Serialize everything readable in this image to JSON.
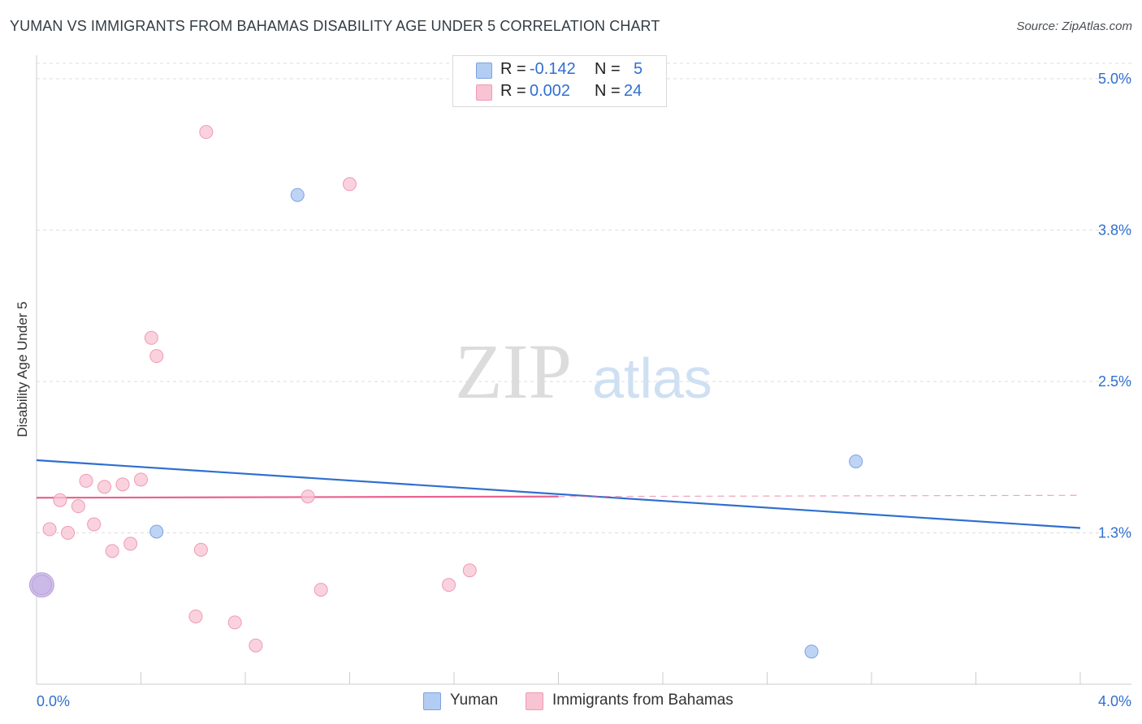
{
  "title": "YUMAN VS IMMIGRANTS FROM BAHAMAS DISABILITY AGE UNDER 5 CORRELATION CHART",
  "source": "Source: ZipAtlas.com",
  "watermark": {
    "zip": "ZIP",
    "atlas": "atlas"
  },
  "legend": {
    "rows": [
      {
        "r_label": "R =",
        "r_value": "-0.142",
        "n_label": "N =",
        "n_value": "5"
      },
      {
        "r_label": "R =",
        "r_value": "0.002",
        "n_label": "N =",
        "n_value": "24"
      }
    ]
  },
  "bottom_legend": [
    {
      "label": "Yuman"
    },
    {
      "label": "Immigrants from Bahamas"
    }
  ],
  "chart_data": {
    "type": "scatter",
    "title": "YUMAN VS IMMIGRANTS FROM BAHAMAS DISABILITY AGE UNDER 5 CORRELATION CHART",
    "xlabel": "",
    "ylabel": "Disability Age Under 5",
    "xlim": [
      0.0,
      4.0
    ],
    "ylim": [
      0.0,
      5.1
    ],
    "x_tick_labels": [
      "0.0%",
      "4.0%"
    ],
    "y_ticks": [
      1.25,
      2.5,
      3.75,
      5.0
    ],
    "y_tick_labels": [
      "1.3%",
      "2.5%",
      "3.8%",
      "5.0%"
    ],
    "grid": true,
    "legend_position": "top-center",
    "colors": {
      "yuman_fill": "#b3cdf2",
      "yuman_stroke": "#7ba3e3",
      "yuman_line": "#2f6fd0",
      "bahamas_fill": "#f8c3d3",
      "bahamas_stroke": "#ef9ab5",
      "bahamas_line": "#e8638f",
      "grid": "#dedede",
      "axis_text": "#2f6fd0",
      "purple_fill": "#c9b6e6",
      "purple_stroke": "#b9a0de"
    },
    "series": [
      {
        "name": "Yuman",
        "r": -0.142,
        "n": 5,
        "points": [
          [
            1.0,
            4.04
          ],
          [
            0.46,
            1.26
          ],
          [
            3.14,
            1.84
          ],
          [
            2.97,
            0.27
          ],
          [
            0.02,
            0.82
          ]
        ],
        "trend": {
          "x": [
            0.0,
            4.0
          ],
          "y": [
            1.85,
            1.29
          ],
          "dashed_from": null
        }
      },
      {
        "name": "Immigrants from Bahamas",
        "r": 0.002,
        "n": 24,
        "points": [
          [
            0.65,
            4.56
          ],
          [
            1.2,
            4.13
          ],
          [
            0.44,
            2.86
          ],
          [
            0.46,
            2.71
          ],
          [
            0.19,
            1.68
          ],
          [
            0.26,
            1.63
          ],
          [
            0.33,
            1.65
          ],
          [
            0.4,
            1.69
          ],
          [
            0.09,
            1.52
          ],
          [
            0.16,
            1.47
          ],
          [
            1.04,
            1.55
          ],
          [
            0.05,
            1.28
          ],
          [
            0.12,
            1.25
          ],
          [
            0.22,
            1.32
          ],
          [
            0.29,
            1.1
          ],
          [
            0.36,
            1.16
          ],
          [
            0.63,
            1.11
          ],
          [
            1.09,
            0.78
          ],
          [
            1.58,
            0.82
          ],
          [
            1.66,
            0.94
          ],
          [
            0.61,
            0.56
          ],
          [
            0.76,
            0.51
          ],
          [
            0.84,
            0.32
          ],
          [
            0.02,
            0.82
          ]
        ],
        "trend": {
          "x": [
            0.0,
            4.0
          ],
          "y": [
            1.54,
            1.56
          ],
          "dashed_from": 2.0
        }
      }
    ]
  }
}
